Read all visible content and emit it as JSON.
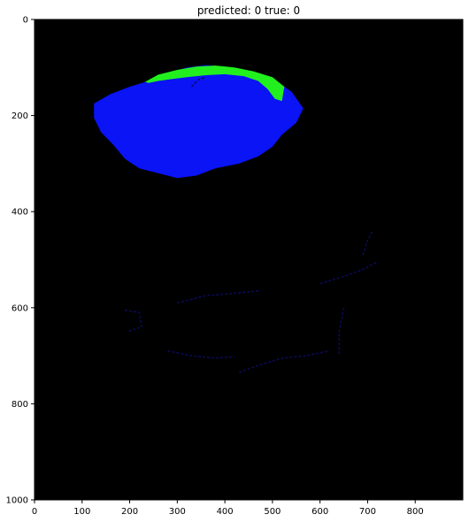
{
  "chart_data": {
    "type": "heatmap",
    "title": "predicted: 0  true: 0",
    "xlabel": "",
    "ylabel": "",
    "x_range": [
      0,
      900
    ],
    "y_range": [
      0,
      1000
    ],
    "y_inverted": true,
    "x_ticks": [
      0,
      100,
      200,
      300,
      400,
      500,
      600,
      700,
      800
    ],
    "y_ticks": [
      0,
      200,
      400,
      600,
      800,
      1000
    ],
    "grid": false,
    "background_color": "#000000",
    "colors": {
      "blue_region": "#0a14f5",
      "green_region": "#22f01e",
      "faint_outline": "#0a0a5a"
    },
    "regions": [
      {
        "color_key": "blue_region",
        "outline": [
          [
            125,
            175
          ],
          [
            160,
            155
          ],
          [
            200,
            140
          ],
          [
            240,
            128
          ],
          [
            280,
            112
          ],
          [
            320,
            100
          ],
          [
            360,
            95
          ],
          [
            400,
            98
          ],
          [
            440,
            105
          ],
          [
            480,
            115
          ],
          [
            510,
            130
          ],
          [
            540,
            150
          ],
          [
            565,
            185
          ],
          [
            550,
            215
          ],
          [
            520,
            240
          ],
          [
            500,
            265
          ],
          [
            470,
            285
          ],
          [
            430,
            300
          ],
          [
            380,
            310
          ],
          [
            340,
            325
          ],
          [
            300,
            330
          ],
          [
            260,
            320
          ],
          [
            220,
            310
          ],
          [
            190,
            290
          ],
          [
            165,
            260
          ],
          [
            140,
            235
          ],
          [
            125,
            205
          ]
        ]
      },
      {
        "color_key": "green_region",
        "outline": [
          [
            232,
            130
          ],
          [
            260,
            115
          ],
          [
            300,
            105
          ],
          [
            340,
            98
          ],
          [
            380,
            96
          ],
          [
            420,
            100
          ],
          [
            460,
            108
          ],
          [
            500,
            120
          ],
          [
            525,
            140
          ],
          [
            520,
            170
          ],
          [
            505,
            165
          ],
          [
            490,
            145
          ],
          [
            470,
            128
          ],
          [
            440,
            118
          ],
          [
            400,
            114
          ],
          [
            360,
            116
          ],
          [
            320,
            120
          ],
          [
            290,
            124
          ],
          [
            260,
            128
          ],
          [
            240,
            132
          ]
        ]
      }
    ],
    "faint_segments": [
      [
        [
          190,
          605
        ],
        [
          220,
          610
        ],
        [
          225,
          640
        ],
        [
          195,
          650
        ]
      ],
      [
        [
          300,
          590
        ],
        [
          360,
          575
        ],
        [
          420,
          570
        ],
        [
          470,
          565
        ]
      ],
      [
        [
          280,
          690
        ],
        [
          330,
          700
        ],
        [
          380,
          705
        ],
        [
          420,
          702
        ]
      ],
      [
        [
          430,
          735
        ],
        [
          470,
          720
        ],
        [
          520,
          705
        ],
        [
          570,
          700
        ],
        [
          620,
          690
        ]
      ],
      [
        [
          600,
          550
        ],
        [
          650,
          535
        ],
        [
          690,
          520
        ],
        [
          720,
          505
        ]
      ],
      [
        [
          650,
          600
        ],
        [
          640,
          650
        ],
        [
          640,
          700
        ]
      ],
      [
        [
          330,
          140
        ],
        [
          345,
          125
        ],
        [
          360,
          120
        ]
      ],
      [
        [
          690,
          490
        ],
        [
          700,
          460
        ],
        [
          710,
          440
        ]
      ]
    ]
  }
}
